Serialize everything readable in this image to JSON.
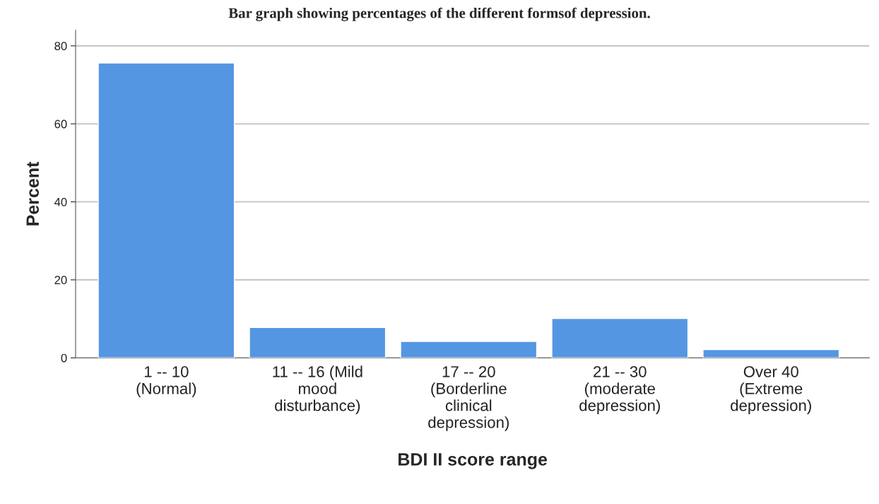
{
  "chart_data": {
    "type": "bar",
    "title": "Bar graph showing percentages of the different formsof depression.",
    "xlabel": "BDI II score range",
    "ylabel": "Percent",
    "categories": [
      "1 -- 10\n(Normal)",
      "11 -- 16 (Mild\nmood\ndisturbance)",
      "17 -- 20\n(Borderline\nclinical\ndepression)",
      "21 -- 30\n(moderate\ndepression)",
      "Over 40\n(Extreme\ndepression)"
    ],
    "values": [
      75.6,
      7.8,
      4.2,
      10.1,
      2.1
    ],
    "color": "#5596e3",
    "ylim": [
      0,
      84
    ],
    "yticks": [
      0,
      20,
      40,
      60,
      80
    ],
    "grid": "y"
  }
}
